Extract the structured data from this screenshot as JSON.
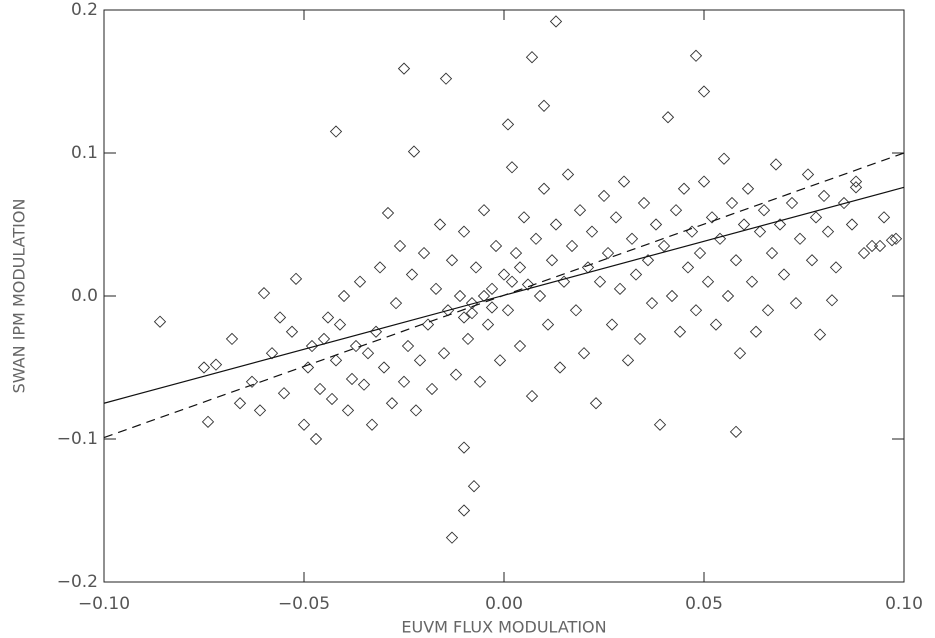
{
  "chart_data": {
    "type": "scatter",
    "x_label": "EUVM FLUX MODULATION",
    "y_label": "SWAN IPM MODULATION",
    "xlim": [
      -0.1,
      0.1
    ],
    "ylim": [
      -0.2,
      0.2
    ],
    "xticks": [
      {
        "value": -0.1,
        "label": "−0.10"
      },
      {
        "value": -0.05,
        "label": "−0.05"
      },
      {
        "value": 0,
        "label": "0.00"
      },
      {
        "value": 0.05,
        "label": "0.05"
      },
      {
        "value": 0.1,
        "label": "0.10"
      }
    ],
    "yticks": [
      {
        "value": -0.2,
        "label": "−0.2"
      },
      {
        "value": -0.1,
        "label": "−0.1"
      },
      {
        "value": 0,
        "label": "0.0"
      },
      {
        "value": 0.1,
        "label": "0.1"
      },
      {
        "value": 0.2,
        "label": "0.2"
      }
    ],
    "color": "#333333",
    "series": [
      {
        "x": [
          0.013,
          0.007,
          0.048,
          -0.025,
          -0.0145,
          0.05,
          0.001,
          0.01,
          -0.042,
          -0.0225,
          -0.013,
          -0.01,
          -0.0075,
          -0.01,
          0.058,
          -0.086,
          0.097,
          0.094,
          0.088,
          -0.075,
          -0.074,
          -0.072,
          -0.068,
          -0.066,
          -0.063,
          -0.061,
          -0.06,
          -0.058,
          -0.056,
          -0.055,
          -0.053,
          -0.052,
          -0.05,
          -0.049,
          -0.048,
          -0.047,
          -0.046,
          -0.045,
          -0.044,
          -0.043,
          -0.042,
          -0.041,
          -0.04,
          -0.039,
          -0.038,
          -0.037,
          -0.036,
          -0.035,
          -0.034,
          -0.033,
          -0.032,
          -0.031,
          -0.03,
          -0.029,
          -0.028,
          -0.027,
          -0.026,
          -0.025,
          -0.024,
          -0.023,
          -0.022,
          -0.021,
          -0.02,
          -0.019,
          -0.018,
          -0.017,
          -0.016,
          -0.015,
          -0.014,
          -0.013,
          -0.012,
          -0.011,
          -0.01,
          -0.009,
          -0.008,
          -0.007,
          -0.006,
          -0.005,
          -0.004,
          -0.003,
          -0.002,
          -0.001,
          0.0,
          0.001,
          0.002,
          0.003,
          0.004,
          0.005,
          0.006,
          0.007,
          0.008,
          0.009,
          0.01,
          0.011,
          0.012,
          0.013,
          0.014,
          0.015,
          0.016,
          0.017,
          0.018,
          0.019,
          0.02,
          0.021,
          0.022,
          0.023,
          0.024,
          0.025,
          0.026,
          0.027,
          0.028,
          0.029,
          0.03,
          0.031,
          0.032,
          0.033,
          0.034,
          0.035,
          0.036,
          0.037,
          0.038,
          0.039,
          0.04,
          0.041,
          0.042,
          0.043,
          0.044,
          0.045,
          0.046,
          0.047,
          0.048,
          0.049,
          0.05,
          0.051,
          0.052,
          0.053,
          0.054,
          0.055,
          0.056,
          0.057,
          0.058,
          0.059,
          0.06,
          0.061,
          0.062,
          0.063,
          0.064,
          0.065,
          0.066,
          0.067,
          0.068,
          0.069,
          0.07,
          0.072,
          0.073,
          0.074,
          0.076,
          0.077,
          0.078,
          0.079,
          0.08,
          0.081,
          0.082,
          0.083,
          0.085,
          0.087,
          0.088,
          0.09,
          0.092,
          0.095,
          0.098,
          -0.008,
          -0.005,
          -0.003,
          0.002,
          -0.01,
          0.004
        ],
        "values": [
          0.192,
          0.167,
          0.168,
          0.159,
          0.152,
          0.143,
          0.12,
          0.133,
          0.115,
          0.101,
          -0.169,
          -0.15,
          -0.133,
          -0.106,
          -0.095,
          -0.018,
          0.039,
          0.035,
          0.076,
          -0.05,
          -0.088,
          -0.048,
          -0.03,
          -0.075,
          -0.06,
          -0.08,
          0.002,
          -0.04,
          -0.015,
          -0.068,
          -0.025,
          0.012,
          -0.09,
          -0.05,
          -0.035,
          -0.1,
          -0.065,
          -0.03,
          -0.015,
          -0.072,
          -0.045,
          -0.02,
          0.0,
          -0.08,
          -0.058,
          -0.035,
          0.01,
          -0.062,
          -0.04,
          -0.09,
          -0.025,
          0.02,
          -0.05,
          0.058,
          -0.075,
          -0.005,
          0.035,
          -0.06,
          -0.035,
          0.015,
          -0.08,
          -0.045,
          0.03,
          -0.02,
          -0.065,
          0.005,
          0.05,
          -0.04,
          -0.01,
          0.025,
          -0.055,
          0.0,
          0.045,
          -0.03,
          -0.012,
          0.02,
          -0.06,
          0.06,
          -0.02,
          0.005,
          0.035,
          -0.045,
          0.015,
          -0.01,
          0.09,
          0.03,
          -0.035,
          0.055,
          0.008,
          -0.07,
          0.04,
          0.0,
          0.075,
          -0.02,
          0.025,
          0.05,
          -0.05,
          0.01,
          0.085,
          0.035,
          -0.01,
          0.06,
          -0.04,
          0.02,
          0.045,
          -0.075,
          0.01,
          0.07,
          0.03,
          -0.02,
          0.055,
          0.005,
          0.08,
          -0.045,
          0.04,
          0.015,
          -0.03,
          0.065,
          0.025,
          -0.005,
          0.05,
          -0.09,
          0.035,
          0.125,
          0.0,
          0.06,
          -0.025,
          0.075,
          0.02,
          0.045,
          -0.01,
          0.03,
          0.08,
          0.01,
          0.055,
          -0.02,
          0.04,
          0.096,
          0.0,
          0.065,
          0.025,
          -0.04,
          0.05,
          0.075,
          0.01,
          -0.025,
          0.045,
          0.06,
          -0.01,
          0.03,
          0.092,
          0.05,
          0.015,
          0.065,
          -0.005,
          0.04,
          0.085,
          0.025,
          0.055,
          -0.027,
          0.07,
          0.045,
          -0.003,
          0.02,
          0.065,
          0.05,
          0.08,
          0.03,
          0.035,
          0.055,
          0.04,
          -0.005,
          0.0,
          -0.008,
          0.01,
          -0.015,
          0.02
        ]
      }
    ],
    "lines": [
      {
        "style": "solid",
        "x": [
          -0.1,
          0.1
        ],
        "values": [
          -0.075,
          0.076
        ]
      },
      {
        "style": "dashed",
        "x": [
          -0.1,
          0.1
        ],
        "values": [
          -0.099,
          0.1
        ]
      }
    ]
  }
}
